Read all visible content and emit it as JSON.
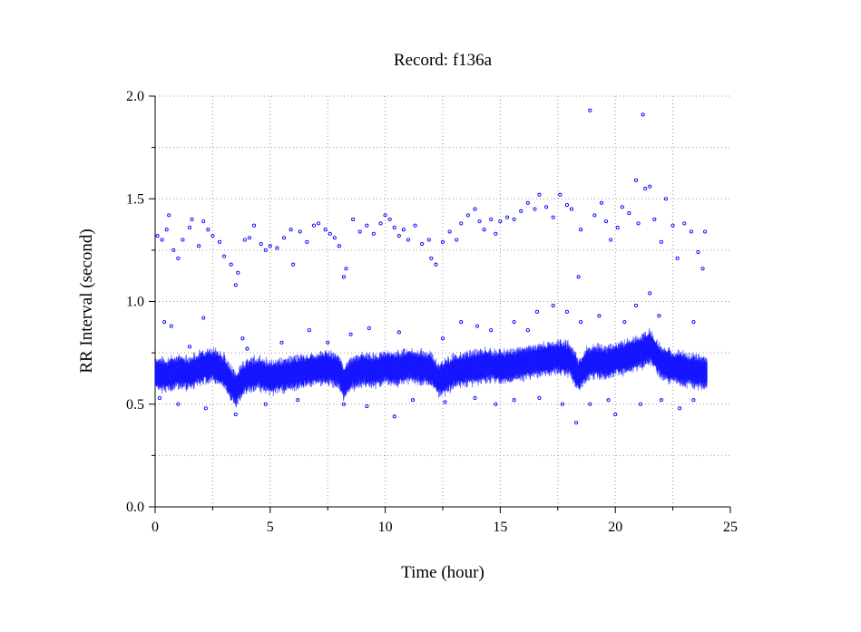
{
  "chart_data": {
    "type": "scatter",
    "title": "Record:  f136a",
    "xlabel": "Time (hour)",
    "ylabel": "RR Interval (second)",
    "xlim": [
      0,
      25
    ],
    "ylim": [
      0,
      2.0
    ],
    "xticks": [
      "0",
      "5",
      "10",
      "15",
      "20",
      "25"
    ],
    "yticks": [
      "0.0",
      "0.5",
      "1.0",
      "1.5",
      "2.0"
    ],
    "grid": true,
    "marker_color": "#0000ff",
    "series": [
      {
        "points": [
          [
            0.1,
            1.32
          ],
          [
            0.3,
            1.3
          ],
          [
            0.5,
            1.35
          ],
          [
            0.6,
            1.42
          ],
          [
            0.8,
            1.25
          ],
          [
            1.0,
            1.21
          ],
          [
            1.2,
            1.3
          ],
          [
            1.5,
            1.36
          ],
          [
            1.6,
            1.4
          ],
          [
            1.9,
            1.27
          ],
          [
            2.1,
            1.39
          ],
          [
            2.3,
            1.35
          ],
          [
            2.5,
            1.32
          ],
          [
            2.8,
            1.29
          ],
          [
            3.0,
            1.22
          ],
          [
            3.3,
            1.18
          ],
          [
            3.5,
            1.08
          ],
          [
            3.6,
            1.14
          ],
          [
            3.9,
            1.3
          ],
          [
            4.1,
            1.31
          ],
          [
            4.3,
            1.37
          ],
          [
            4.6,
            1.28
          ],
          [
            4.8,
            1.25
          ],
          [
            5.0,
            1.27
          ],
          [
            5.3,
            1.26
          ],
          [
            5.6,
            1.31
          ],
          [
            5.9,
            1.35
          ],
          [
            6.0,
            1.18
          ],
          [
            6.3,
            1.34
          ],
          [
            6.6,
            1.29
          ],
          [
            6.9,
            1.37
          ],
          [
            7.1,
            1.38
          ],
          [
            7.4,
            1.35
          ],
          [
            7.6,
            1.33
          ],
          [
            7.8,
            1.31
          ],
          [
            8.0,
            1.27
          ],
          [
            8.2,
            1.12
          ],
          [
            8.3,
            1.16
          ],
          [
            8.6,
            1.4
          ],
          [
            8.9,
            1.34
          ],
          [
            9.2,
            1.37
          ],
          [
            9.5,
            1.33
          ],
          [
            9.8,
            1.38
          ],
          [
            10.0,
            1.42
          ],
          [
            10.2,
            1.4
          ],
          [
            10.4,
            1.36
          ],
          [
            10.6,
            1.32
          ],
          [
            10.8,
            1.35
          ],
          [
            11.0,
            1.3
          ],
          [
            11.3,
            1.37
          ],
          [
            11.6,
            1.28
          ],
          [
            11.9,
            1.3
          ],
          [
            12.0,
            1.21
          ],
          [
            12.2,
            1.18
          ],
          [
            12.5,
            1.29
          ],
          [
            12.8,
            1.34
          ],
          [
            13.1,
            1.3
          ],
          [
            13.3,
            1.38
          ],
          [
            13.6,
            1.42
          ],
          [
            13.9,
            1.45
          ],
          [
            14.1,
            1.39
          ],
          [
            14.3,
            1.35
          ],
          [
            14.6,
            1.4
          ],
          [
            14.8,
            1.33
          ],
          [
            15.0,
            1.39
          ],
          [
            15.3,
            1.41
          ],
          [
            15.6,
            1.4
          ],
          [
            15.9,
            1.44
          ],
          [
            16.2,
            1.48
          ],
          [
            16.5,
            1.45
          ],
          [
            16.7,
            1.52
          ],
          [
            17.0,
            1.46
          ],
          [
            17.3,
            1.41
          ],
          [
            17.6,
            1.52
          ],
          [
            17.9,
            1.47
          ],
          [
            18.1,
            1.45
          ],
          [
            18.4,
            1.12
          ],
          [
            18.5,
            1.35
          ],
          [
            18.9,
            1.93
          ],
          [
            19.1,
            1.42
          ],
          [
            19.4,
            1.48
          ],
          [
            19.6,
            1.39
          ],
          [
            19.8,
            1.3
          ],
          [
            20.1,
            1.36
          ],
          [
            20.3,
            1.46
          ],
          [
            20.6,
            1.43
          ],
          [
            20.9,
            1.59
          ],
          [
            21.0,
            1.38
          ],
          [
            21.2,
            1.91
          ],
          [
            21.3,
            1.55
          ],
          [
            21.5,
            1.56
          ],
          [
            21.7,
            1.4
          ],
          [
            22.0,
            1.29
          ],
          [
            22.2,
            1.5
          ],
          [
            22.5,
            1.37
          ],
          [
            22.7,
            1.21
          ],
          [
            23.0,
            1.38
          ],
          [
            23.3,
            1.34
          ],
          [
            23.6,
            1.24
          ],
          [
            23.8,
            1.16
          ],
          [
            23.9,
            1.34
          ],
          [
            0.4,
            0.9
          ],
          [
            0.7,
            0.88
          ],
          [
            1.5,
            0.78
          ],
          [
            2.1,
            0.92
          ],
          [
            3.8,
            0.82
          ],
          [
            4.0,
            0.77
          ],
          [
            5.5,
            0.8
          ],
          [
            6.7,
            0.86
          ],
          [
            7.5,
            0.8
          ],
          [
            8.5,
            0.84
          ],
          [
            9.3,
            0.87
          ],
          [
            10.6,
            0.85
          ],
          [
            12.5,
            0.82
          ],
          [
            13.3,
            0.9
          ],
          [
            14.0,
            0.88
          ],
          [
            14.6,
            0.86
          ],
          [
            15.6,
            0.9
          ],
          [
            16.2,
            0.86
          ],
          [
            16.6,
            0.95
          ],
          [
            17.3,
            0.98
          ],
          [
            17.9,
            0.95
          ],
          [
            18.5,
            0.9
          ],
          [
            19.3,
            0.93
          ],
          [
            20.4,
            0.9
          ],
          [
            20.9,
            0.98
          ],
          [
            21.5,
            1.04
          ],
          [
            21.9,
            0.93
          ],
          [
            23.4,
            0.9
          ],
          [
            0.2,
            0.53
          ],
          [
            1.0,
            0.5
          ],
          [
            2.2,
            0.48
          ],
          [
            3.5,
            0.45
          ],
          [
            4.8,
            0.5
          ],
          [
            6.2,
            0.52
          ],
          [
            8.2,
            0.5
          ],
          [
            9.2,
            0.49
          ],
          [
            10.4,
            0.44
          ],
          [
            11.2,
            0.52
          ],
          [
            12.6,
            0.51
          ],
          [
            13.9,
            0.53
          ],
          [
            14.8,
            0.5
          ],
          [
            15.6,
            0.52
          ],
          [
            16.7,
            0.53
          ],
          [
            17.7,
            0.5
          ],
          [
            18.3,
            0.41
          ],
          [
            18.9,
            0.5
          ],
          [
            19.7,
            0.52
          ],
          [
            20.0,
            0.45
          ],
          [
            21.1,
            0.5
          ],
          [
            22.0,
            0.52
          ],
          [
            22.8,
            0.48
          ],
          [
            23.4,
            0.52
          ]
        ]
      }
    ],
    "baseline": {
      "x": [
        0,
        0.5,
        1.0,
        1.5,
        2.0,
        2.5,
        3.0,
        3.3,
        3.5,
        3.8,
        4.0,
        4.5,
        5.0,
        5.5,
        6.0,
        6.5,
        7.0,
        7.5,
        8.0,
        8.2,
        8.5,
        9.0,
        9.5,
        10.0,
        10.5,
        11.0,
        11.5,
        12.0,
        12.3,
        12.6,
        13.0,
        13.5,
        14.0,
        14.5,
        15.0,
        15.5,
        16.0,
        16.5,
        17.0,
        17.5,
        18.0,
        18.4,
        18.8,
        19.2,
        19.6,
        20.0,
        20.5,
        21.0,
        21.5,
        22.0,
        22.5,
        23.0,
        23.5,
        24.0
      ],
      "y": [
        0.65,
        0.64,
        0.66,
        0.65,
        0.68,
        0.69,
        0.66,
        0.6,
        0.57,
        0.62,
        0.64,
        0.65,
        0.63,
        0.64,
        0.65,
        0.66,
        0.67,
        0.68,
        0.66,
        0.6,
        0.65,
        0.67,
        0.66,
        0.68,
        0.67,
        0.69,
        0.68,
        0.67,
        0.62,
        0.63,
        0.66,
        0.67,
        0.68,
        0.69,
        0.68,
        0.69,
        0.7,
        0.71,
        0.72,
        0.73,
        0.72,
        0.64,
        0.7,
        0.71,
        0.7,
        0.72,
        0.73,
        0.75,
        0.78,
        0.7,
        0.68,
        0.67,
        0.66,
        0.65
      ]
    }
  }
}
